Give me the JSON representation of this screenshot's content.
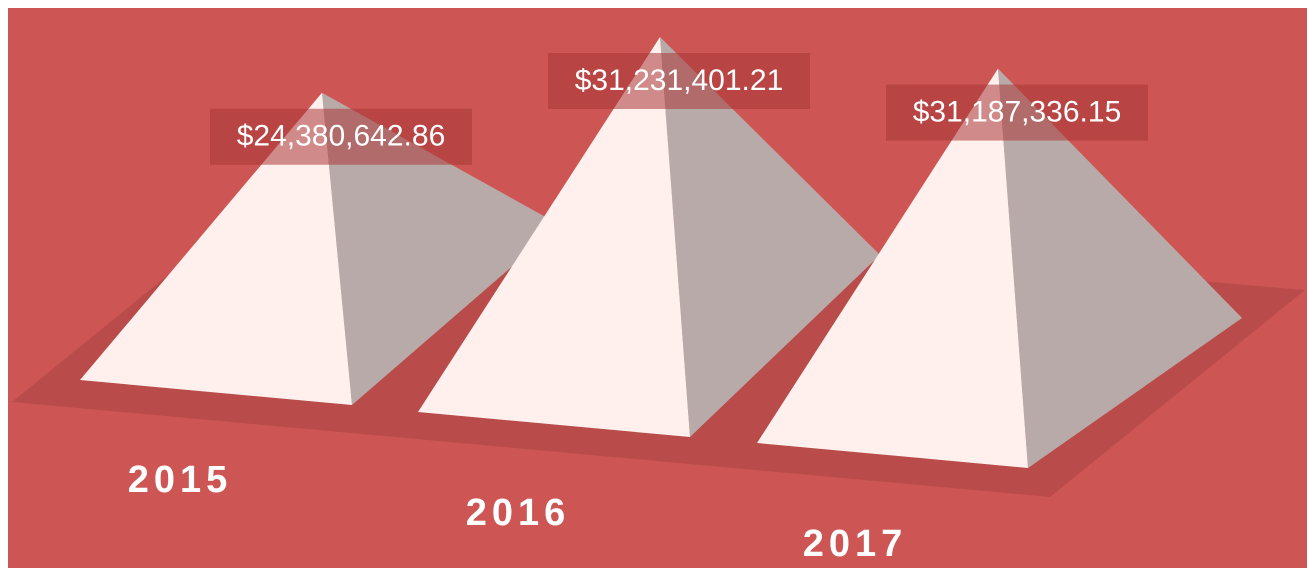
{
  "chart_data": {
    "type": "pyramid",
    "categories": [
      "2015",
      "2016",
      "2017"
    ],
    "values": [
      24380642.86,
      31231401.21,
      31187336.15
    ],
    "value_labels": [
      "$24,380,642.86",
      "$31,231,401.21",
      "$31,187,336.15"
    ],
    "color": "#fff0ee"
  }
}
